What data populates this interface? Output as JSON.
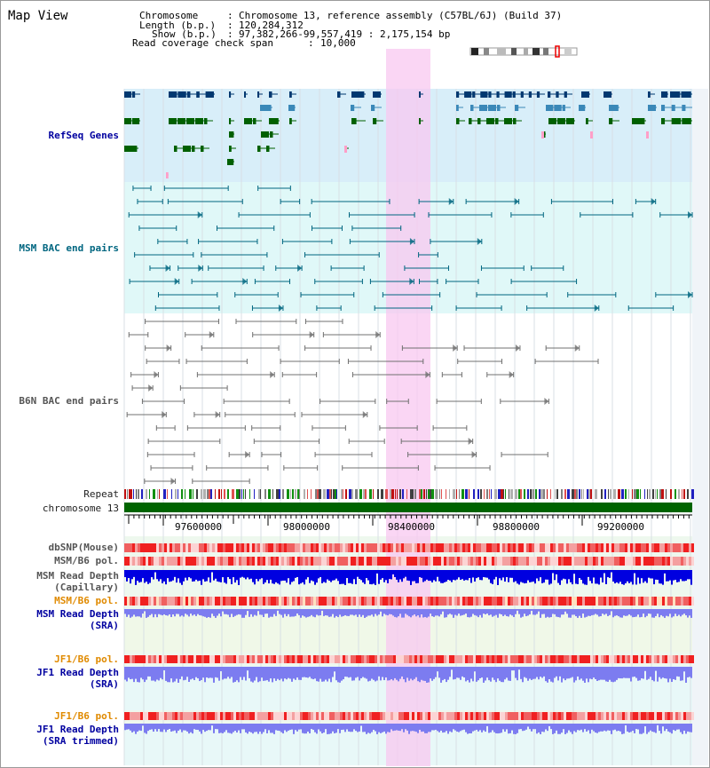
{
  "title": "Map View",
  "header": {
    "chromosome_label": "Chromosome",
    "chromosome_value": "Chromosome 13, reference assembly (C57BL/6J) (Build 37)",
    "length_label": "Length (b.p.)",
    "length_value": "120,284,312",
    "show_label": "Show (b.p.)",
    "show_value": "97,382,266-99,557,419 : 2,175,154 bp",
    "coverage_label": "Read coverage check span",
    "coverage_value": "10,000"
  },
  "tracks": {
    "refseq": "RefSeq Genes",
    "msm_bac": "MSM BAC end pairs",
    "b6n_bac": "B6N BAC end pairs",
    "repeat": "Repeat",
    "chromosome": "chromosome 13",
    "dbsnp": "dbSNP(Mouse)",
    "msm_b6_pol_1": "MSM/B6 pol.",
    "msm_read_cap_1": "MSM Read Depth",
    "msm_read_cap_2": "(Capillary)",
    "msm_b6_pol_2": "MSM/B6 pol.",
    "msm_read_sra_1": "MSM Read Depth",
    "msm_read_sra_2": "(SRA)",
    "jf1_b6_pol_1": "JF1/B6 pol.",
    "jf1_read_sra_1": "JF1 Read Depth",
    "jf1_read_sra_2": "(SRA)",
    "jf1_b6_pol_2": "JF1/B6 pol.",
    "jf1_read_trim_1": "JF1 Read Depth",
    "jf1_read_trim_2": "(SRA trimmed)"
  },
  "axis": {
    "ticks": [
      "97600000",
      "98000000",
      "98400000",
      "98800000",
      "99200000"
    ]
  },
  "colors": {
    "gene_dark": "#003870",
    "gene_mid": "#3a88b8",
    "gene_green": "#006000",
    "gene_pink": "#ff9fc8",
    "bac_msm": "#006680",
    "bac_b6n": "#707070",
    "chromosome_bar": "#006400",
    "highlight": "#f8c8f0",
    "depth_blue": "#0000e0",
    "depth_light": "#7c7cf0"
  }
}
